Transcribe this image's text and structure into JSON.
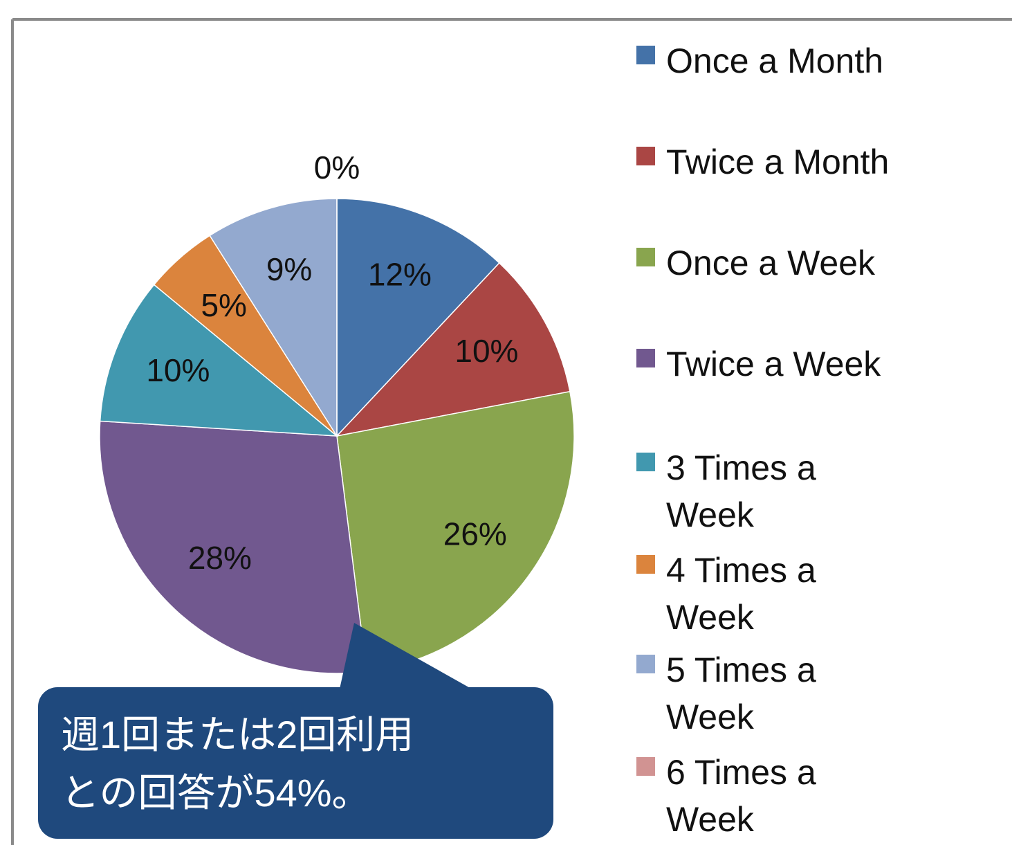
{
  "chart_data": {
    "type": "pie",
    "categories": [
      "Once a Month",
      "Twice a Month",
      "Once a Week",
      "Twice a Week",
      "3 Times a Week",
      "4 Times a Week",
      "5 Times a Week",
      "6 Times a Week"
    ],
    "values": [
      12,
      10,
      26,
      28,
      10,
      5,
      9,
      0
    ],
    "value_labels": [
      "12%",
      "10%",
      "26%",
      "28%",
      "10%",
      "5%",
      "9%",
      "0%"
    ],
    "colors": [
      "#4472a8",
      "#aa4644",
      "#89a54e",
      "#71588f",
      "#4198af",
      "#db843d",
      "#93a9cf",
      "#d19392"
    ],
    "legend": "right",
    "annotation": [
      "週1回または2回利用",
      "との回答が54%。"
    ]
  }
}
